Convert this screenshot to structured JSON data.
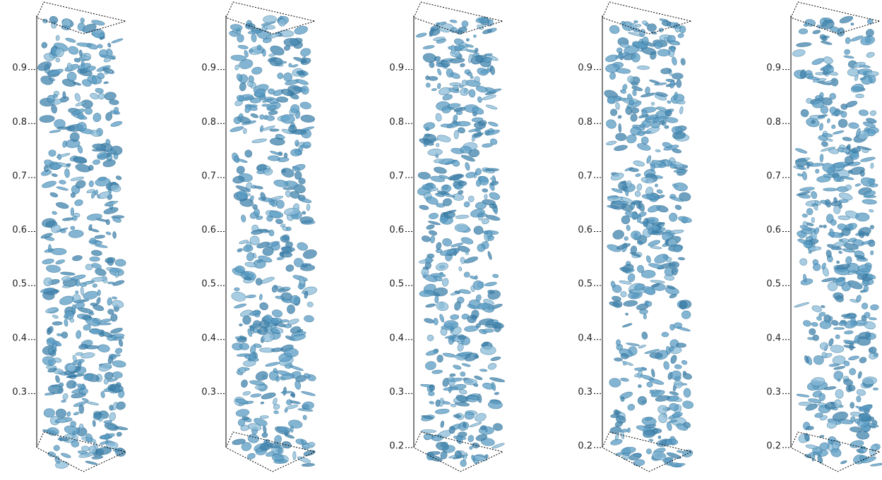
{
  "chart_data": [
    {
      "type": "volume",
      "ylim": [
        0.2,
        1.0
      ],
      "yticks": [
        0.3,
        0.4,
        0.5,
        0.6,
        0.7,
        0.8,
        0.9
      ]
    },
    {
      "type": "volume",
      "ylim": [
        0.2,
        1.0
      ],
      "yticks": [
        0.3,
        0.4,
        0.5,
        0.6,
        0.7,
        0.8,
        0.9
      ]
    },
    {
      "type": "volume",
      "ylim": [
        0.2,
        1.0
      ],
      "yticks": [
        0.2,
        0.3,
        0.4,
        0.5,
        0.6,
        0.7,
        0.8,
        0.9
      ]
    },
    {
      "type": "volume",
      "ylim": [
        0.2,
        1.0
      ],
      "yticks": [
        0.2,
        0.3,
        0.4,
        0.5,
        0.6,
        0.7,
        0.8,
        0.9
      ]
    },
    {
      "type": "volume",
      "ylim": [
        0.2,
        1.0
      ],
      "yticks": [
        0.2,
        0.3,
        0.4,
        0.5,
        0.6,
        0.7,
        0.8,
        0.9
      ]
    }
  ]
}
